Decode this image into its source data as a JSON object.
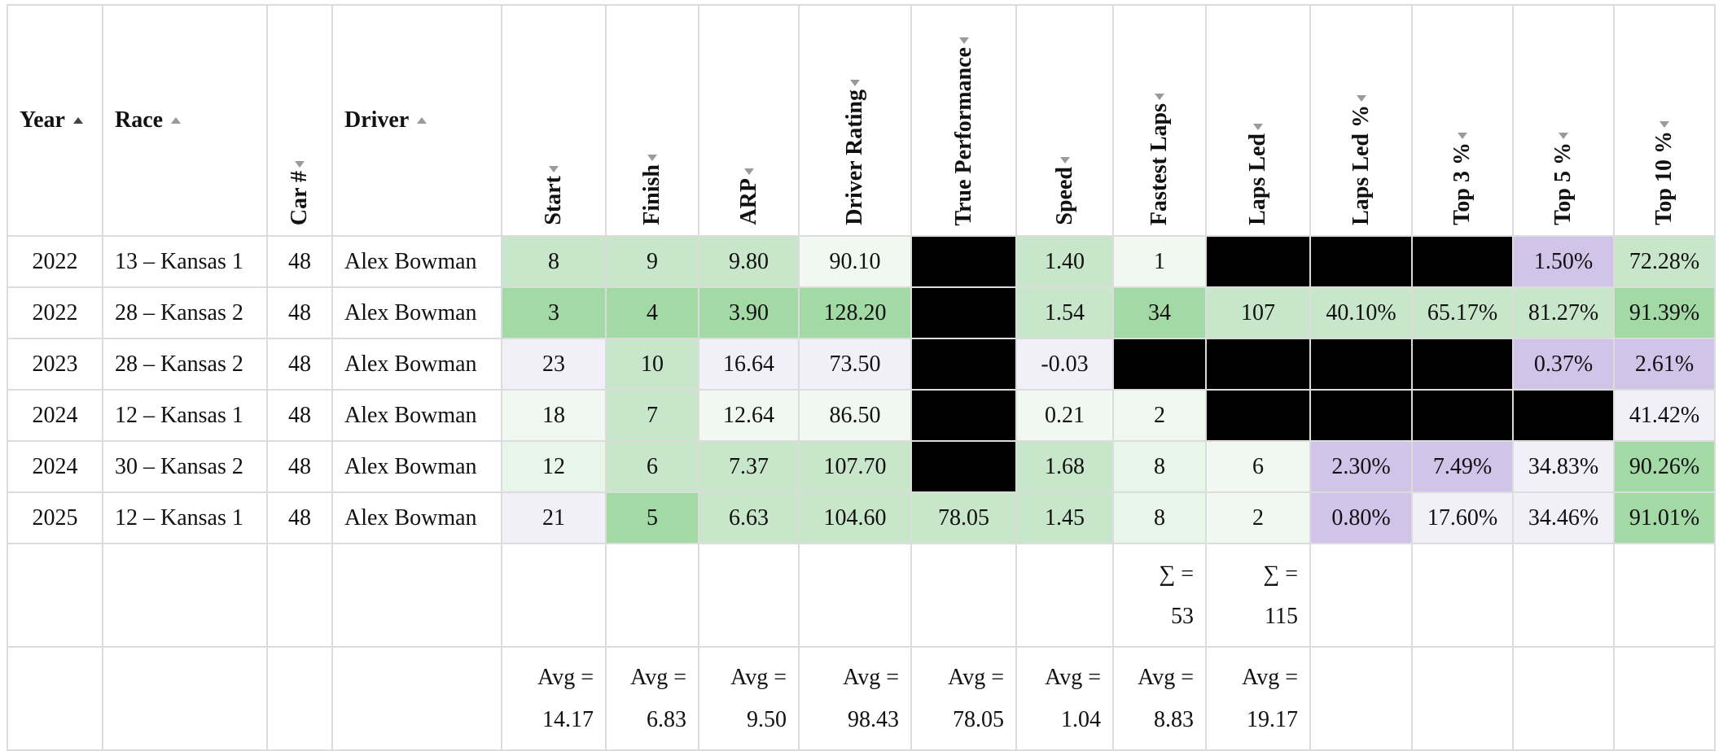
{
  "colors": {
    "green_dark": "#a3d9a5",
    "green_mid": "#c8e6c9",
    "green_light": "#e8f5e9",
    "green_faint": "#f1f8f1",
    "lavender_light": "#f1f0f8",
    "lavender": "#d1c4e9",
    "black": "#000000",
    "border": "#dcdcdc"
  },
  "headers": [
    {
      "label": "Year",
      "sort": "asc"
    },
    {
      "label": "Race",
      "sort": "asc-light"
    },
    {
      "label": "Car #",
      "sort": "desc",
      "vertical": true
    },
    {
      "label": "Driver",
      "sort": "asc-light"
    },
    {
      "label": "Start",
      "sort": "desc",
      "vertical": true
    },
    {
      "label": "Finish",
      "sort": "desc",
      "vertical": true
    },
    {
      "label": "ARP",
      "sort": "desc",
      "vertical": true
    },
    {
      "label": "Driver Rating",
      "sort": "desc",
      "vertical": true
    },
    {
      "label": "True Performance",
      "sort": "desc",
      "vertical": true
    },
    {
      "label": "Speed",
      "sort": "desc",
      "vertical": true
    },
    {
      "label": "Fastest Laps",
      "sort": "desc",
      "vertical": true
    },
    {
      "label": "Laps Led",
      "sort": "desc",
      "vertical": true
    },
    {
      "label": "Laps Led %",
      "sort": "desc",
      "vertical": true
    },
    {
      "label": "Top 3 %",
      "sort": "desc",
      "vertical": true
    },
    {
      "label": "Top 5 %",
      "sort": "desc",
      "vertical": true
    },
    {
      "label": "Top 10 %",
      "sort": "desc",
      "vertical": true
    }
  ],
  "rows": [
    {
      "cells": [
        {
          "v": "2022"
        },
        {
          "v": "13 – Kansas 1"
        },
        {
          "v": "48"
        },
        {
          "v": "Alex Bowman"
        },
        {
          "v": "8",
          "bg": "green_mid"
        },
        {
          "v": "9",
          "bg": "green_mid"
        },
        {
          "v": "9.80",
          "bg": "green_mid"
        },
        {
          "v": "90.10",
          "bg": "green_faint"
        },
        {
          "v": "",
          "bg": "black"
        },
        {
          "v": "1.40",
          "bg": "green_mid"
        },
        {
          "v": "1",
          "bg": "green_faint"
        },
        {
          "v": "",
          "bg": "black"
        },
        {
          "v": "",
          "bg": "black"
        },
        {
          "v": "",
          "bg": "black"
        },
        {
          "v": "1.50%",
          "bg": "lavender"
        },
        {
          "v": "72.28%",
          "bg": "green_mid"
        }
      ]
    },
    {
      "cells": [
        {
          "v": "2022"
        },
        {
          "v": "28 – Kansas 2"
        },
        {
          "v": "48"
        },
        {
          "v": "Alex Bowman"
        },
        {
          "v": "3",
          "bg": "green_dark"
        },
        {
          "v": "4",
          "bg": "green_dark"
        },
        {
          "v": "3.90",
          "bg": "green_dark"
        },
        {
          "v": "128.20",
          "bg": "green_dark"
        },
        {
          "v": "",
          "bg": "black"
        },
        {
          "v": "1.54",
          "bg": "green_mid"
        },
        {
          "v": "34",
          "bg": "green_dark"
        },
        {
          "v": "107",
          "bg": "green_mid"
        },
        {
          "v": "40.10%",
          "bg": "green_mid"
        },
        {
          "v": "65.17%",
          "bg": "green_mid"
        },
        {
          "v": "81.27%",
          "bg": "green_mid"
        },
        {
          "v": "91.39%",
          "bg": "green_dark"
        }
      ]
    },
    {
      "cells": [
        {
          "v": "2023"
        },
        {
          "v": "28 – Kansas 2"
        },
        {
          "v": "48"
        },
        {
          "v": "Alex Bowman"
        },
        {
          "v": "23",
          "bg": "lavender_light"
        },
        {
          "v": "10",
          "bg": "green_mid"
        },
        {
          "v": "16.64",
          "bg": "lavender_light"
        },
        {
          "v": "73.50",
          "bg": "lavender_light"
        },
        {
          "v": "",
          "bg": "black"
        },
        {
          "v": "-0.03",
          "bg": "lavender_light"
        },
        {
          "v": "",
          "bg": "black"
        },
        {
          "v": "",
          "bg": "black"
        },
        {
          "v": "",
          "bg": "black"
        },
        {
          "v": "",
          "bg": "black"
        },
        {
          "v": "0.37%",
          "bg": "lavender"
        },
        {
          "v": "2.61%",
          "bg": "lavender"
        }
      ]
    },
    {
      "cells": [
        {
          "v": "2024"
        },
        {
          "v": "12 – Kansas 1"
        },
        {
          "v": "48"
        },
        {
          "v": "Alex Bowman"
        },
        {
          "v": "18",
          "bg": "green_faint"
        },
        {
          "v": "7",
          "bg": "green_mid"
        },
        {
          "v": "12.64",
          "bg": "green_faint"
        },
        {
          "v": "86.50",
          "bg": "green_faint"
        },
        {
          "v": "",
          "bg": "black"
        },
        {
          "v": "0.21",
          "bg": "green_faint"
        },
        {
          "v": "2",
          "bg": "green_faint"
        },
        {
          "v": "",
          "bg": "black"
        },
        {
          "v": "",
          "bg": "black"
        },
        {
          "v": "",
          "bg": "black"
        },
        {
          "v": "",
          "bg": "black"
        },
        {
          "v": "41.42%",
          "bg": "lavender_light"
        }
      ]
    },
    {
      "cells": [
        {
          "v": "2024"
        },
        {
          "v": "30 – Kansas 2"
        },
        {
          "v": "48"
        },
        {
          "v": "Alex Bowman"
        },
        {
          "v": "12",
          "bg": "green_light"
        },
        {
          "v": "6",
          "bg": "green_mid"
        },
        {
          "v": "7.37",
          "bg": "green_mid"
        },
        {
          "v": "107.70",
          "bg": "green_mid"
        },
        {
          "v": "",
          "bg": "black"
        },
        {
          "v": "1.68",
          "bg": "green_mid"
        },
        {
          "v": "8",
          "bg": "green_light"
        },
        {
          "v": "6",
          "bg": "green_faint"
        },
        {
          "v": "2.30%",
          "bg": "lavender"
        },
        {
          "v": "7.49%",
          "bg": "lavender"
        },
        {
          "v": "34.83%",
          "bg": "lavender_light"
        },
        {
          "v": "90.26%",
          "bg": "green_dark"
        }
      ]
    },
    {
      "cells": [
        {
          "v": "2025"
        },
        {
          "v": "12 – Kansas 1"
        },
        {
          "v": "48"
        },
        {
          "v": "Alex Bowman"
        },
        {
          "v": "21",
          "bg": "lavender_light"
        },
        {
          "v": "5",
          "bg": "green_dark"
        },
        {
          "v": "6.63",
          "bg": "green_mid"
        },
        {
          "v": "104.60",
          "bg": "green_mid"
        },
        {
          "v": "78.05",
          "bg": "green_mid"
        },
        {
          "v": "1.45",
          "bg": "green_mid"
        },
        {
          "v": "8",
          "bg": "green_light"
        },
        {
          "v": "2",
          "bg": "green_faint"
        },
        {
          "v": "0.80%",
          "bg": "lavender"
        },
        {
          "v": "17.60%",
          "bg": "lavender_light"
        },
        {
          "v": "34.46%",
          "bg": "lavender_light"
        },
        {
          "v": "91.01%",
          "bg": "green_dark"
        }
      ]
    }
  ],
  "sum_row": [
    "",
    "",
    "",
    "",
    "",
    "",
    "",
    "",
    "",
    "",
    "∑ =|53",
    "∑ =|115",
    "",
    "",
    "",
    ""
  ],
  "avg_row": [
    "",
    "",
    "",
    "",
    "Avg =|14.17",
    "Avg =|6.83",
    "Avg =|9.50",
    "Avg =|98.43",
    "Avg =|78.05",
    "Avg =|1.04",
    "Avg =|8.83",
    "Avg =|19.17",
    "",
    "",
    "",
    ""
  ]
}
